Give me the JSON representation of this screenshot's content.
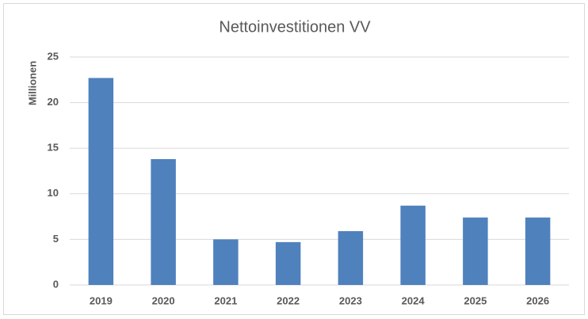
{
  "chart_data": {
    "type": "bar",
    "title": "Nettoinvestitionen VV",
    "y_label": "Millionen",
    "categories": [
      "2019",
      "2020",
      "2021",
      "2022",
      "2023",
      "2024",
      "2025",
      "2026"
    ],
    "values": [
      22.7,
      13.8,
      5.0,
      4.7,
      5.9,
      8.7,
      7.4,
      7.4
    ],
    "color": "#4f81bd",
    "ylim": [
      0,
      25
    ],
    "yticks": [
      0,
      5,
      10,
      15,
      20,
      25
    ],
    "grid": true
  }
}
